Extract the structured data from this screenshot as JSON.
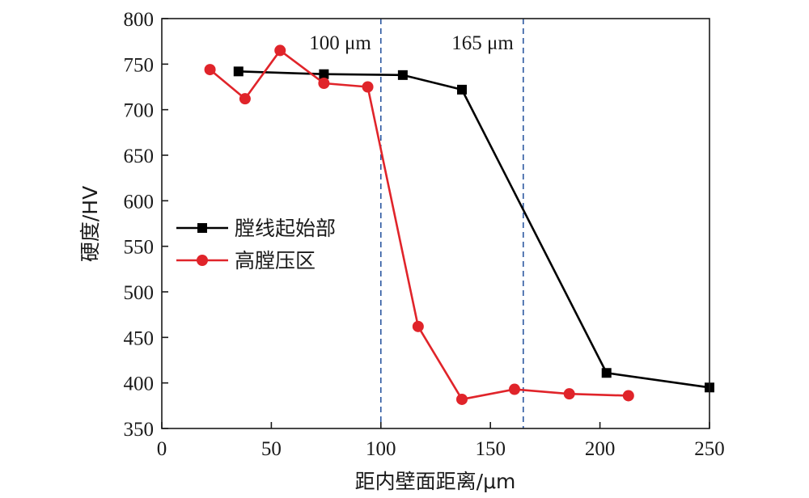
{
  "chart_data": {
    "type": "line",
    "xlabel": "距内壁面距离/μm",
    "ylabel": "硬度/HV",
    "xlim": [
      0,
      250
    ],
    "ylim": [
      350,
      800
    ],
    "xticks": [
      0,
      50,
      100,
      150,
      200,
      250
    ],
    "yticks": [
      350,
      400,
      450,
      500,
      550,
      600,
      650,
      700,
      750,
      800
    ],
    "grid": false,
    "legend_position": "center-left",
    "vlines": [
      {
        "x": 100,
        "label": "100 μm",
        "color": "#1f4e9c"
      },
      {
        "x": 165,
        "label": "165 μm",
        "color": "#1f4e9c"
      }
    ],
    "series": [
      {
        "name": "膛线起始部",
        "color": "#000000",
        "marker": "square",
        "x": [
          35,
          74,
          110,
          137,
          203,
          250
        ],
        "y": [
          742,
          739,
          738,
          722,
          411,
          395
        ]
      },
      {
        "name": "高膛压区",
        "color": "#e0242a",
        "marker": "circle",
        "x": [
          22,
          38,
          54,
          74,
          94,
          117,
          137,
          161,
          186,
          213
        ],
        "y": [
          744,
          712,
          765,
          729,
          725,
          462,
          382,
          393,
          388,
          386
        ]
      }
    ]
  }
}
